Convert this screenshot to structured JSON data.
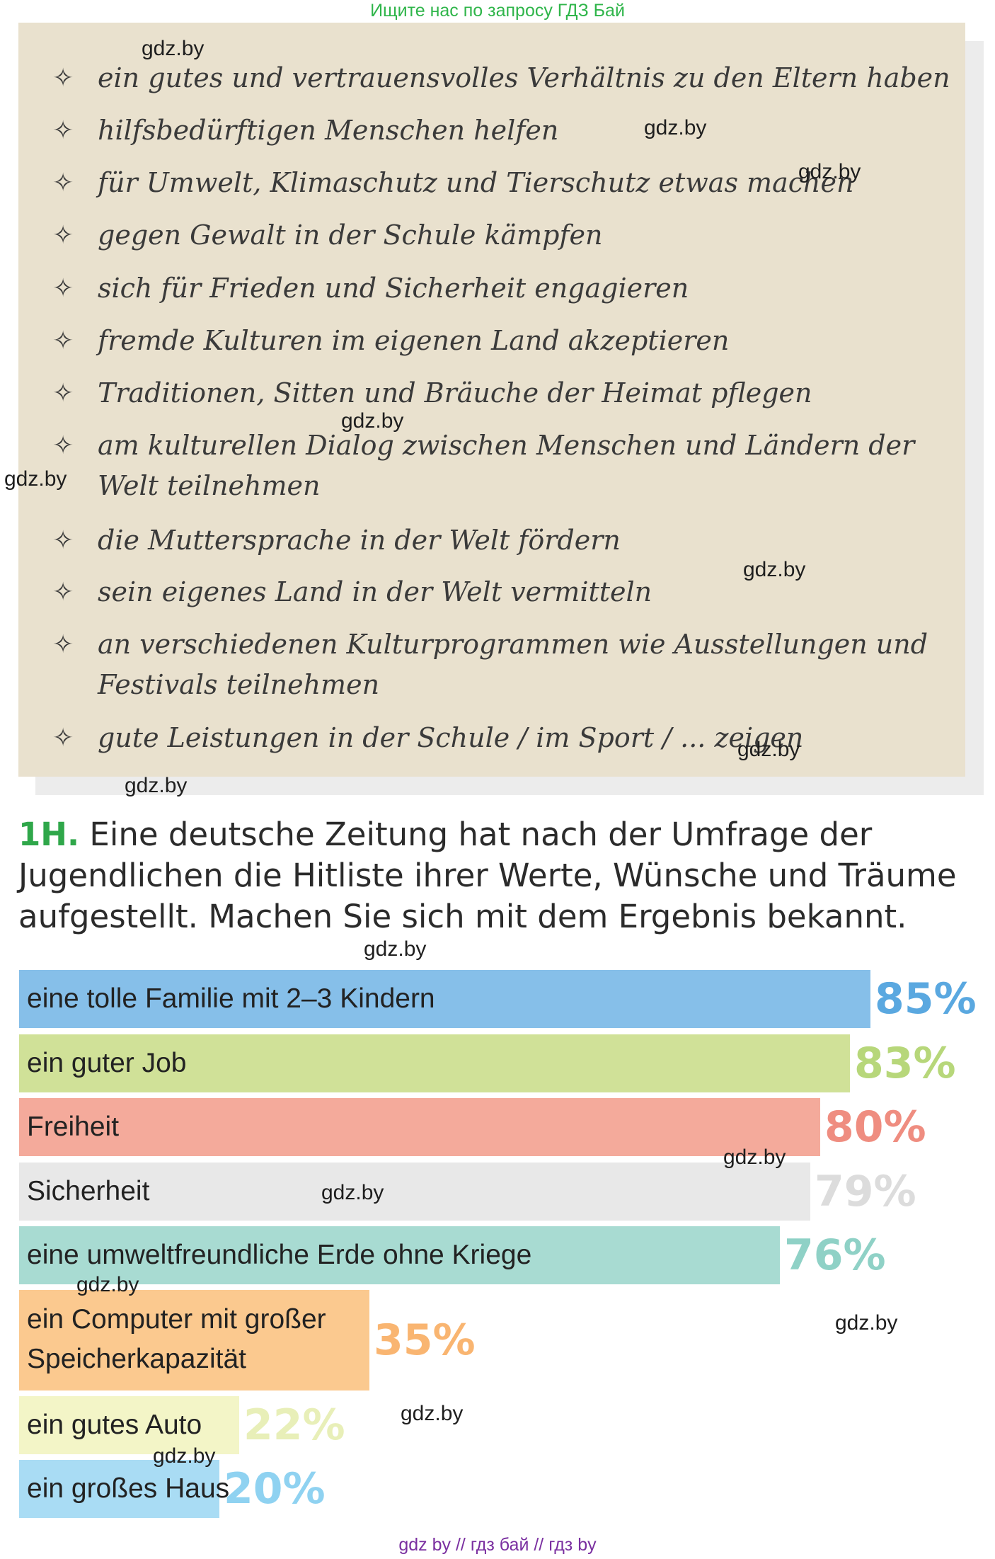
{
  "banner": "Ищите нас по запросу ГДЗ Бай",
  "list": {
    "items": [
      "ein gutes und vertrauensvolles Verhältnis zu den Eltern haben",
      "hilfsbedürftigen Menschen helfen",
      "für Umwelt, Klimaschutz und Tierschutz etwas machen",
      "gegen Gewalt in der Schule kämpfen",
      "sich für Frieden und Sicherheit engagieren",
      "fremde Kulturen im eigenen Land akzeptieren",
      "Traditionen, Sitten und Bräuche der Heimat pflegen",
      "am kulturellen Dialog zwischen Menschen und Ländern der Welt teilnehmen",
      "die Muttersprache in der Welt fördern",
      "sein eigenes Land in der Welt vermitteln",
      "an verschiedenen Kulturprogrammen wie Ausstellungen und Festivals teilnehmen",
      "gute Leistungen in der Schule / im Sport / ... zeigen"
    ]
  },
  "watermark": "gdz.by",
  "task": {
    "number": "1H.",
    "text": "Eine deutsche Zeitung hat nach der Umfrage der Jugendlichen die Hitliste ihrer Werte, Wünsche und Träume aufgestellt. Machen Sie sich mit dem Ergebnis bekannt."
  },
  "chart_data": {
    "type": "bar",
    "orientation": "horizontal",
    "categories": [
      "eine tolle Familie mit 2–3 Kindern",
      "ein guter Job",
      "Freiheit",
      "Sicherheit",
      "eine umweltfreundliche Erde ohne Kriege",
      "ein Computer mit großer Speicherkapazität",
      "ein gutes Auto",
      "ein großes Haus"
    ],
    "values": [
      85,
      83,
      80,
      79,
      76,
      35,
      22,
      20
    ],
    "value_labels": [
      "85%",
      "83%",
      "80%",
      "79%",
      "76%",
      "35%",
      "22%",
      "20%"
    ],
    "bar_colors": [
      "#86bfe9",
      "#d0e198",
      "#f4aa9b",
      "#e8e8e8",
      "#a8dbd2",
      "#fbc98f",
      "#f3f5c7",
      "#a9dcf4"
    ],
    "label_colors": [
      "#5aa8e0",
      "#b7d77a",
      "#ef8d80",
      "#dcdcdc",
      "#8fd1c6",
      "#f9b571",
      "#e8efb8",
      "#8fd2f1"
    ],
    "xlim": [
      0,
      100
    ]
  },
  "footer": "gdz by  //  гдз бай  //  гдз by"
}
